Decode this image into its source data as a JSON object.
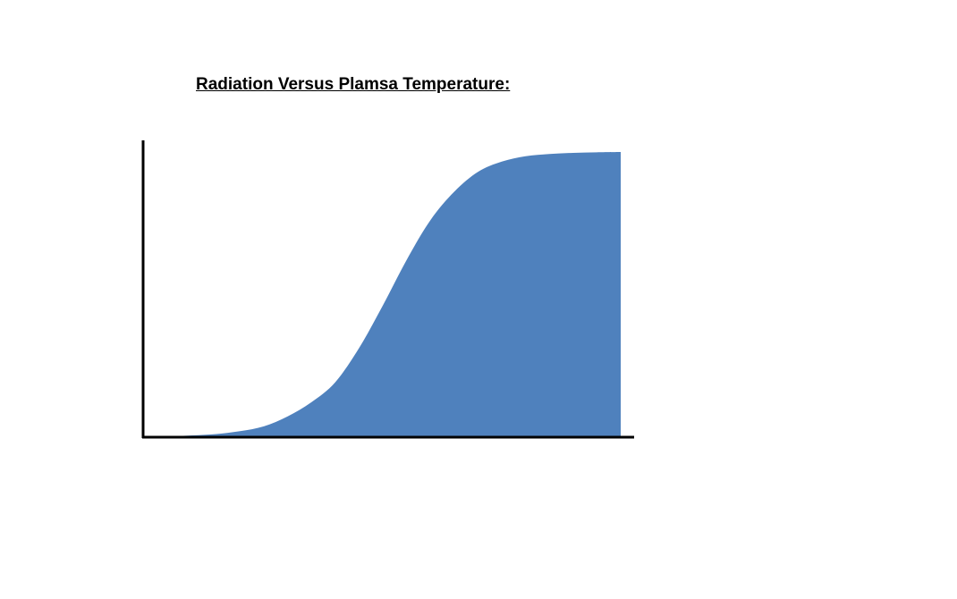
{
  "title": "Radiation Versus Plamsa Temperature:",
  "colors": {
    "fill": "#4f81bd",
    "axis": "#000000",
    "background": "#ffffff"
  },
  "chart_data": {
    "type": "area",
    "title": "Radiation Versus Plamsa Temperature:",
    "xlabel": "",
    "ylabel": "",
    "tick_labels": false,
    "grid": false,
    "legend": "none",
    "xlim": [
      0,
      100
    ],
    "ylim": [
      0,
      1.04
    ],
    "x": [
      0,
      5,
      10,
      15,
      20,
      25,
      30,
      35,
      40,
      45,
      50,
      55,
      60,
      65,
      70,
      75,
      80,
      85,
      90,
      95,
      100
    ],
    "values": [
      0.0,
      0.0,
      0.003,
      0.008,
      0.018,
      0.035,
      0.07,
      0.12,
      0.19,
      0.31,
      0.46,
      0.62,
      0.76,
      0.86,
      0.93,
      0.966,
      0.985,
      0.993,
      0.997,
      0.999,
      1.0
    ]
  }
}
